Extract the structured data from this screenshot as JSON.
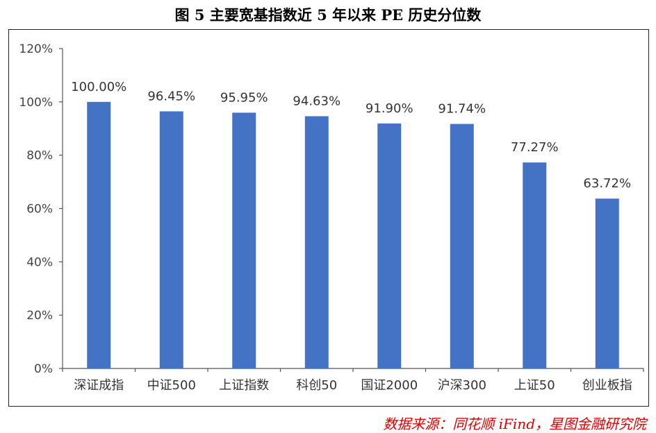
{
  "chart_data": {
    "type": "bar",
    "title": "图 5 主要宽基指数近 5 年以来 PE 历史分位数",
    "categories": [
      "深证成指",
      "中证500",
      "上证指数",
      "科创50",
      "国证2000",
      "沪深300",
      "上证50",
      "创业板指"
    ],
    "values": [
      100.0,
      96.45,
      95.95,
      94.63,
      91.9,
      91.74,
      77.27,
      63.72
    ],
    "data_labels": [
      "100.00%",
      "96.45%",
      "95.95%",
      "94.63%",
      "91.90%",
      "91.74%",
      "77.27%",
      "63.72%"
    ],
    "y_ticks": [
      0,
      20,
      40,
      60,
      80,
      100,
      120
    ],
    "y_tick_labels": [
      "0%",
      "20%",
      "40%",
      "60%",
      "80%",
      "100%",
      "120%"
    ],
    "ylim": [
      0,
      120
    ],
    "xlabel": "",
    "ylabel": "",
    "grid": false,
    "bar_color": "#4472c4"
  },
  "source": "数据来源：同花顺 iFind，星图金融研究院"
}
